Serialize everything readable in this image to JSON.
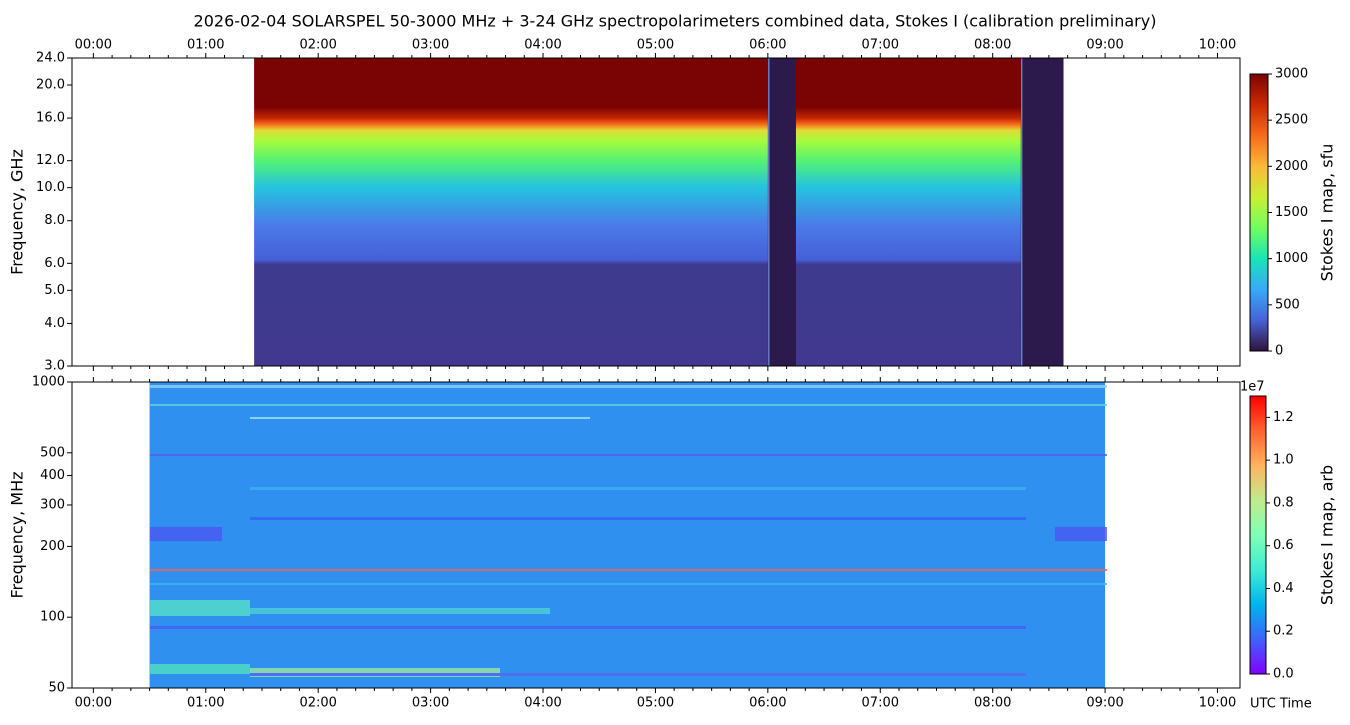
{
  "title": "2026-02-04  SOLARSPEL  50-3000 MHz  +  3-24 GHz  spectropolarimeters combined data,  Stokes I  (calibration preliminary)",
  "chart_data": [
    {
      "type": "heatmap",
      "ylabel": "Frequency, GHz",
      "colorbar_label": "Stokes I map, sfu",
      "xlim": [
        -0.19,
        10.2
      ],
      "xtick_position": "top",
      "xticks": [
        {
          "value": 0,
          "label": "00:00"
        },
        {
          "value": 1,
          "label": "01:00"
        },
        {
          "value": 2,
          "label": "02:00"
        },
        {
          "value": 3,
          "label": "03:00"
        },
        {
          "value": 4,
          "label": "04:00"
        },
        {
          "value": 5,
          "label": "05:00"
        },
        {
          "value": 6,
          "label": "06:00"
        },
        {
          "value": 7,
          "label": "07:00"
        },
        {
          "value": 8,
          "label": "08:00"
        },
        {
          "value": 9,
          "label": "09:00"
        },
        {
          "value": 10,
          "label": "10:00"
        }
      ],
      "ylim": [
        3,
        24
      ],
      "yscale": "log",
      "yticks": [
        {
          "value": 3,
          "label": "3.0"
        },
        {
          "value": 4,
          "label": "4.0"
        },
        {
          "value": 5,
          "label": "5.0"
        },
        {
          "value": 6,
          "label": "6.0"
        },
        {
          "value": 8,
          "label": "8.0"
        },
        {
          "value": 10,
          "label": "10.0"
        },
        {
          "value": 12,
          "label": "12.0"
        },
        {
          "value": 16,
          "label": "16.0"
        },
        {
          "value": 20,
          "label": "20.0"
        },
        {
          "value": 24,
          "label": "24.0"
        }
      ],
      "clim": [
        0,
        3000
      ],
      "cticks": [
        0,
        500,
        1000,
        1500,
        2000,
        2500,
        3000
      ],
      "colormap": [
        "#30123b",
        "#4662d7",
        "#36aaf9",
        "#1ae4b6",
        "#72fe5e",
        "#c8ef34",
        "#faba39",
        "#f66b19",
        "#ca2a04",
        "#7a0403"
      ],
      "data_extent": [
        1.43,
        8.63
      ],
      "gaps": [
        [
          6.0,
          6.25
        ],
        [
          8.25,
          8.63
        ]
      ]
    },
    {
      "type": "heatmap",
      "ylabel": "Frequency, MHz",
      "colorbar_label": "Stokes I map, arb",
      "xlabel": "UTC Time",
      "xlim": [
        -0.19,
        10.2
      ],
      "xtick_position": "bottom",
      "xticks": [
        {
          "value": 0,
          "label": "00:00"
        },
        {
          "value": 1,
          "label": "01:00"
        },
        {
          "value": 2,
          "label": "02:00"
        },
        {
          "value": 3,
          "label": "03:00"
        },
        {
          "value": 4,
          "label": "04:00"
        },
        {
          "value": 5,
          "label": "05:00"
        },
        {
          "value": 6,
          "label": "06:00"
        },
        {
          "value": 7,
          "label": "07:00"
        },
        {
          "value": 8,
          "label": "08:00"
        },
        {
          "value": 9,
          "label": "09:00"
        },
        {
          "value": 10,
          "label": "10:00"
        }
      ],
      "ylim": [
        50,
        1000
      ],
      "yscale": "log",
      "yticks": [
        50,
        100,
        200,
        300,
        400,
        500,
        1000
      ],
      "clim": [
        0,
        1.3
      ],
      "colorbar_offset": "1e7",
      "cticks": [
        {
          "value": 0,
          "label": "0.0"
        },
        {
          "value": 0.2,
          "label": "0.2"
        },
        {
          "value": 0.4,
          "label": "0.4"
        },
        {
          "value": 0.6,
          "label": "0.6"
        },
        {
          "value": 0.8,
          "label": "0.8"
        },
        {
          "value": 1.0,
          "label": "1.0"
        },
        {
          "value": 1.2,
          "label": "1.2"
        }
      ],
      "colormap": [
        "#8000ff",
        "#4062fa",
        "#00b5eb",
        "#40ecd4",
        "#80ffb4",
        "#c0eb8d",
        "#ffb360",
        "#ff6230",
        "#ff0000"
      ],
      "data_extent": [
        0.5,
        9.0
      ],
      "gaps": []
    }
  ]
}
